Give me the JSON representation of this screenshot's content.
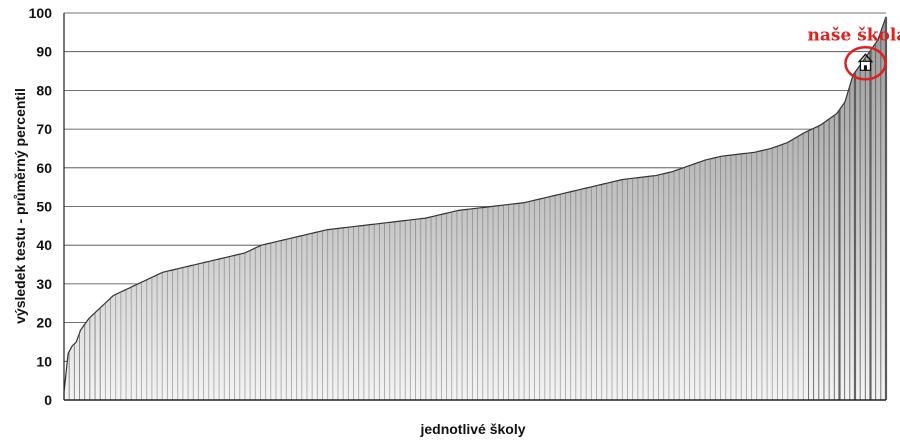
{
  "chart_data": {
    "type": "area",
    "title": "",
    "xlabel": "jednotlivé školy",
    "ylabel": "výsledek testu - průměrný percentil",
    "ylim": [
      0,
      100
    ],
    "yticks": [
      "0",
      "10",
      "20",
      "30",
      "40",
      "50",
      "60",
      "70",
      "80",
      "90",
      "100"
    ],
    "grid": true,
    "legend": "none",
    "series": [
      {
        "values_description_skip": null,
        "x_rank_fraction": [
          0.0,
          0.005,
          0.01,
          0.015,
          0.02,
          0.03,
          0.04,
          0.05,
          0.06,
          0.07,
          0.08,
          0.09,
          0.1,
          0.12,
          0.14,
          0.16,
          0.18,
          0.2,
          0.22,
          0.24,
          0.26,
          0.28,
          0.3,
          0.32,
          0.34,
          0.36,
          0.38,
          0.4,
          0.42,
          0.44,
          0.46,
          0.48,
          0.5,
          0.52,
          0.54,
          0.56,
          0.58,
          0.6,
          0.62,
          0.64,
          0.66,
          0.68,
          0.7,
          0.72,
          0.74,
          0.76,
          0.78,
          0.8,
          0.82,
          0.84,
          0.86,
          0.88,
          0.9,
          0.92,
          0.94,
          0.95,
          0.96,
          0.97,
          0.98,
          0.99,
          1.0
        ],
        "values": [
          2,
          12,
          14,
          15,
          18,
          21,
          23,
          25,
          27,
          28,
          29,
          30,
          31,
          33,
          34,
          35,
          36,
          37,
          38,
          40,
          41,
          42,
          43,
          44,
          44.5,
          45,
          45.5,
          46,
          46.5,
          47,
          48,
          49,
          49.5,
          50,
          50.5,
          51,
          52,
          53,
          54,
          55,
          56,
          57,
          57.5,
          58,
          59,
          60.5,
          62,
          63,
          63.5,
          64,
          65,
          66.5,
          69,
          71,
          74,
          77,
          84,
          87,
          90,
          93,
          99
        ]
      }
    ],
    "annotations": [
      {
        "text": "naše škola",
        "x_rank_fraction": 0.975,
        "y": 87,
        "color": "#e02020",
        "marker": "house-icon"
      }
    ]
  },
  "colors": {
    "annotation": "#e02020",
    "curve": "#333333",
    "grid": "#444444"
  }
}
